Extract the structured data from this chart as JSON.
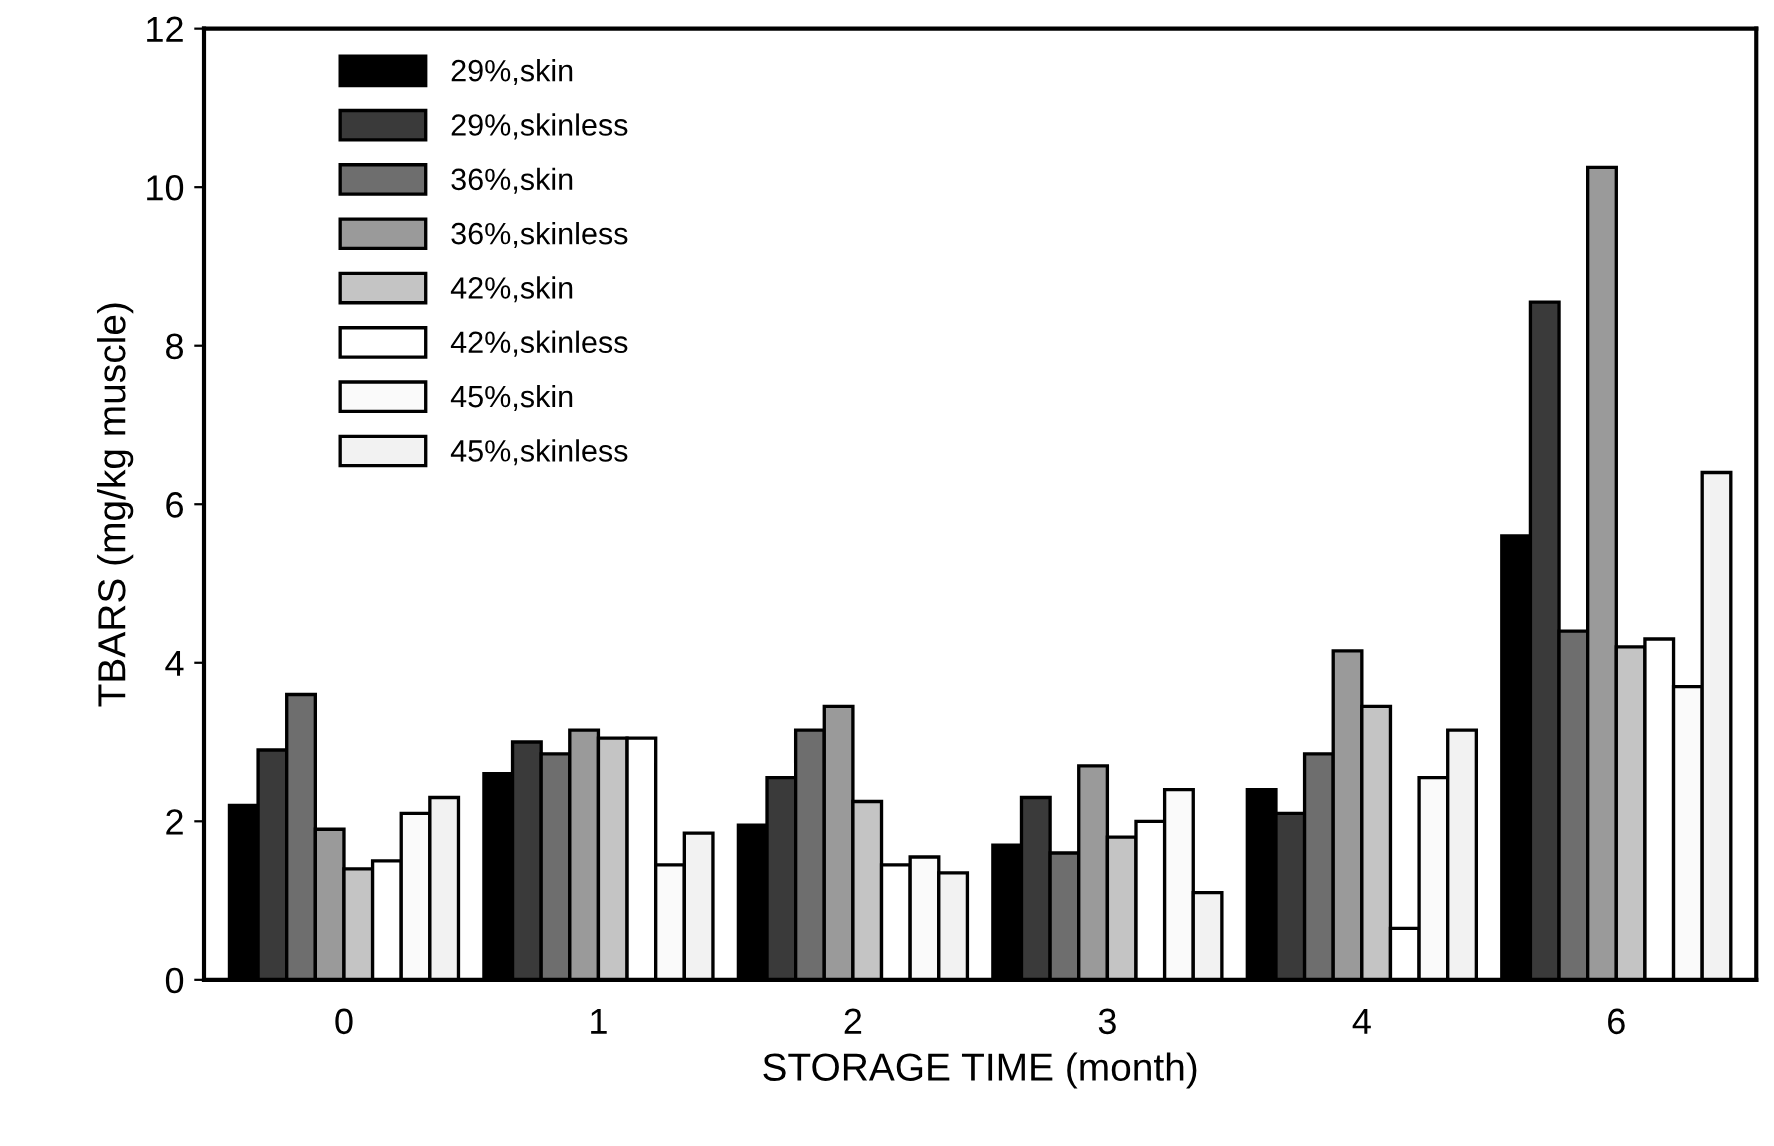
{
  "chart_data": {
    "type": "bar",
    "xlabel": "STORAGE TIME (month)",
    "ylabel": "TBARS (mg/kg muscle)",
    "categories": [
      "0",
      "1",
      "2",
      "3",
      "4",
      "6"
    ],
    "series": [
      {
        "name": "29%,skin",
        "color": "#000000",
        "values": [
          2.2,
          2.6,
          1.95,
          1.7,
          2.4,
          5.6
        ]
      },
      {
        "name": "29%,skinless",
        "color": "#3a3a3a",
        "values": [
          2.9,
          3.0,
          2.55,
          2.3,
          2.1,
          8.55
        ]
      },
      {
        "name": "36%,skin",
        "color": "#6e6e6e",
        "values": [
          3.6,
          2.85,
          3.15,
          1.6,
          2.85,
          4.4
        ]
      },
      {
        "name": "36%,skinless",
        "color": "#9a9a9a",
        "values": [
          1.9,
          3.15,
          3.45,
          2.7,
          4.15,
          10.25
        ]
      },
      {
        "name": "42%,skin",
        "color": "#c4c4c4",
        "values": [
          1.4,
          3.05,
          2.25,
          1.8,
          3.45,
          4.2
        ]
      },
      {
        "name": "42%,skinless",
        "color": "#ffffff",
        "values": [
          1.5,
          3.05,
          1.45,
          2.0,
          0.65,
          4.3
        ]
      },
      {
        "name": "45%,skin",
        "color": "#fafafa",
        "values": [
          2.1,
          1.45,
          1.55,
          2.4,
          2.55,
          3.7
        ]
      },
      {
        "name": "45%,skinless",
        "color": "#f2f2f2",
        "values": [
          2.3,
          1.85,
          1.35,
          1.1,
          3.15,
          6.4
        ]
      }
    ],
    "ylim": [
      0,
      12
    ],
    "yticks": [
      0,
      2,
      4,
      6,
      8,
      10,
      12
    ],
    "grid": false,
    "legend": "top left"
  }
}
